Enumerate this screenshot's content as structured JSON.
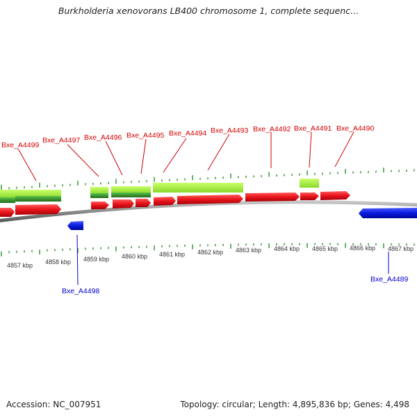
{
  "title": "Burkholderia xenovorans LB400 chromosome 1, complete sequenc...",
  "footer": {
    "accession": "Accession: NC_007951",
    "stats": "Topology: circular; Length: 4,895,836 bp; Genes: 4,498"
  },
  "colors": {
    "cds_forward": "#e8141c",
    "cds_reverse": "#0a1adf",
    "rna_light": "#a4f03a",
    "rna_dark": "#3a9a2e",
    "backbone": "#8a8a8a",
    "tick": "#2e8b2e",
    "label_forward": "#d40000",
    "label_reverse": "#0000cc"
  },
  "scale_labels": [
    "4857 kbp",
    "4858 kbp",
    "4859 kbp",
    "4860 kbp",
    "4861 kbp",
    "4862 kbp",
    "4863 kbp",
    "4864 kbp",
    "4865 kbp",
    "4866 kbp",
    "4867 kbp"
  ],
  "forward_genes": [
    "Bxe_A4499",
    "Bxe_A4497",
    "Bxe_A4496",
    "Bxe_A4495",
    "Bxe_A4494",
    "Bxe_A4493",
    "Bxe_A4492",
    "Bxe_A4491",
    "Bxe_A4490"
  ],
  "reverse_genes": [
    "Bxe_A4498",
    "Bxe_A4489"
  ]
}
